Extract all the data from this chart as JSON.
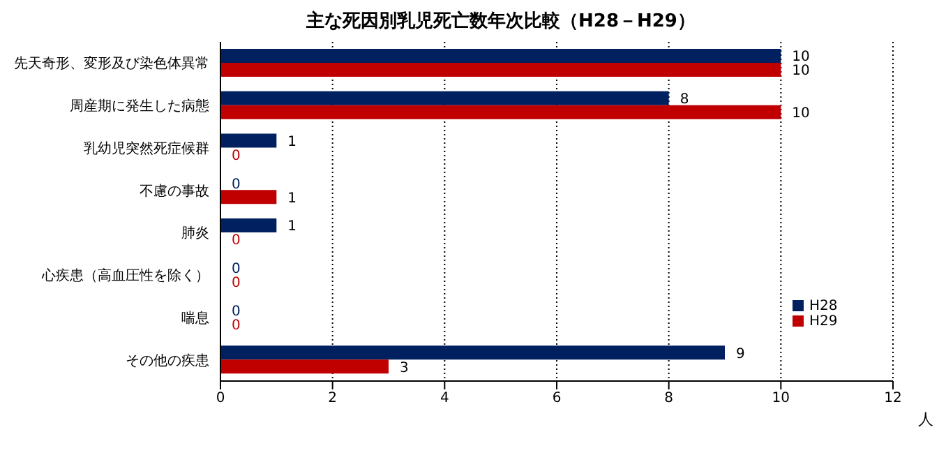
{
  "chart_data": {
    "type": "bar",
    "orientation": "horizontal",
    "title": "主な死因別乳児死亡数年次比較（H28－H29）",
    "xlabel": "人",
    "categories": [
      "先天奇形、変形及び染色体異常",
      "周産期に発生した病態",
      "乳幼児突然死症候群",
      "不慮の事故",
      "肺炎",
      "心疾患（高血圧性を除く）",
      "喘息",
      "その他の疾患"
    ],
    "series": [
      {
        "name": "H28",
        "color": "#002060",
        "values": [
          10,
          8,
          1,
          0,
          1,
          0,
          0,
          9
        ]
      },
      {
        "name": "H29",
        "color": "#c00000",
        "values": [
          10,
          10,
          0,
          1,
          0,
          0,
          0,
          3
        ]
      }
    ],
    "xlim": [
      0,
      12
    ],
    "xticks": [
      0,
      2,
      4,
      6,
      8,
      10,
      12
    ],
    "grid": "x",
    "legend": "right",
    "data_labels": true
  }
}
